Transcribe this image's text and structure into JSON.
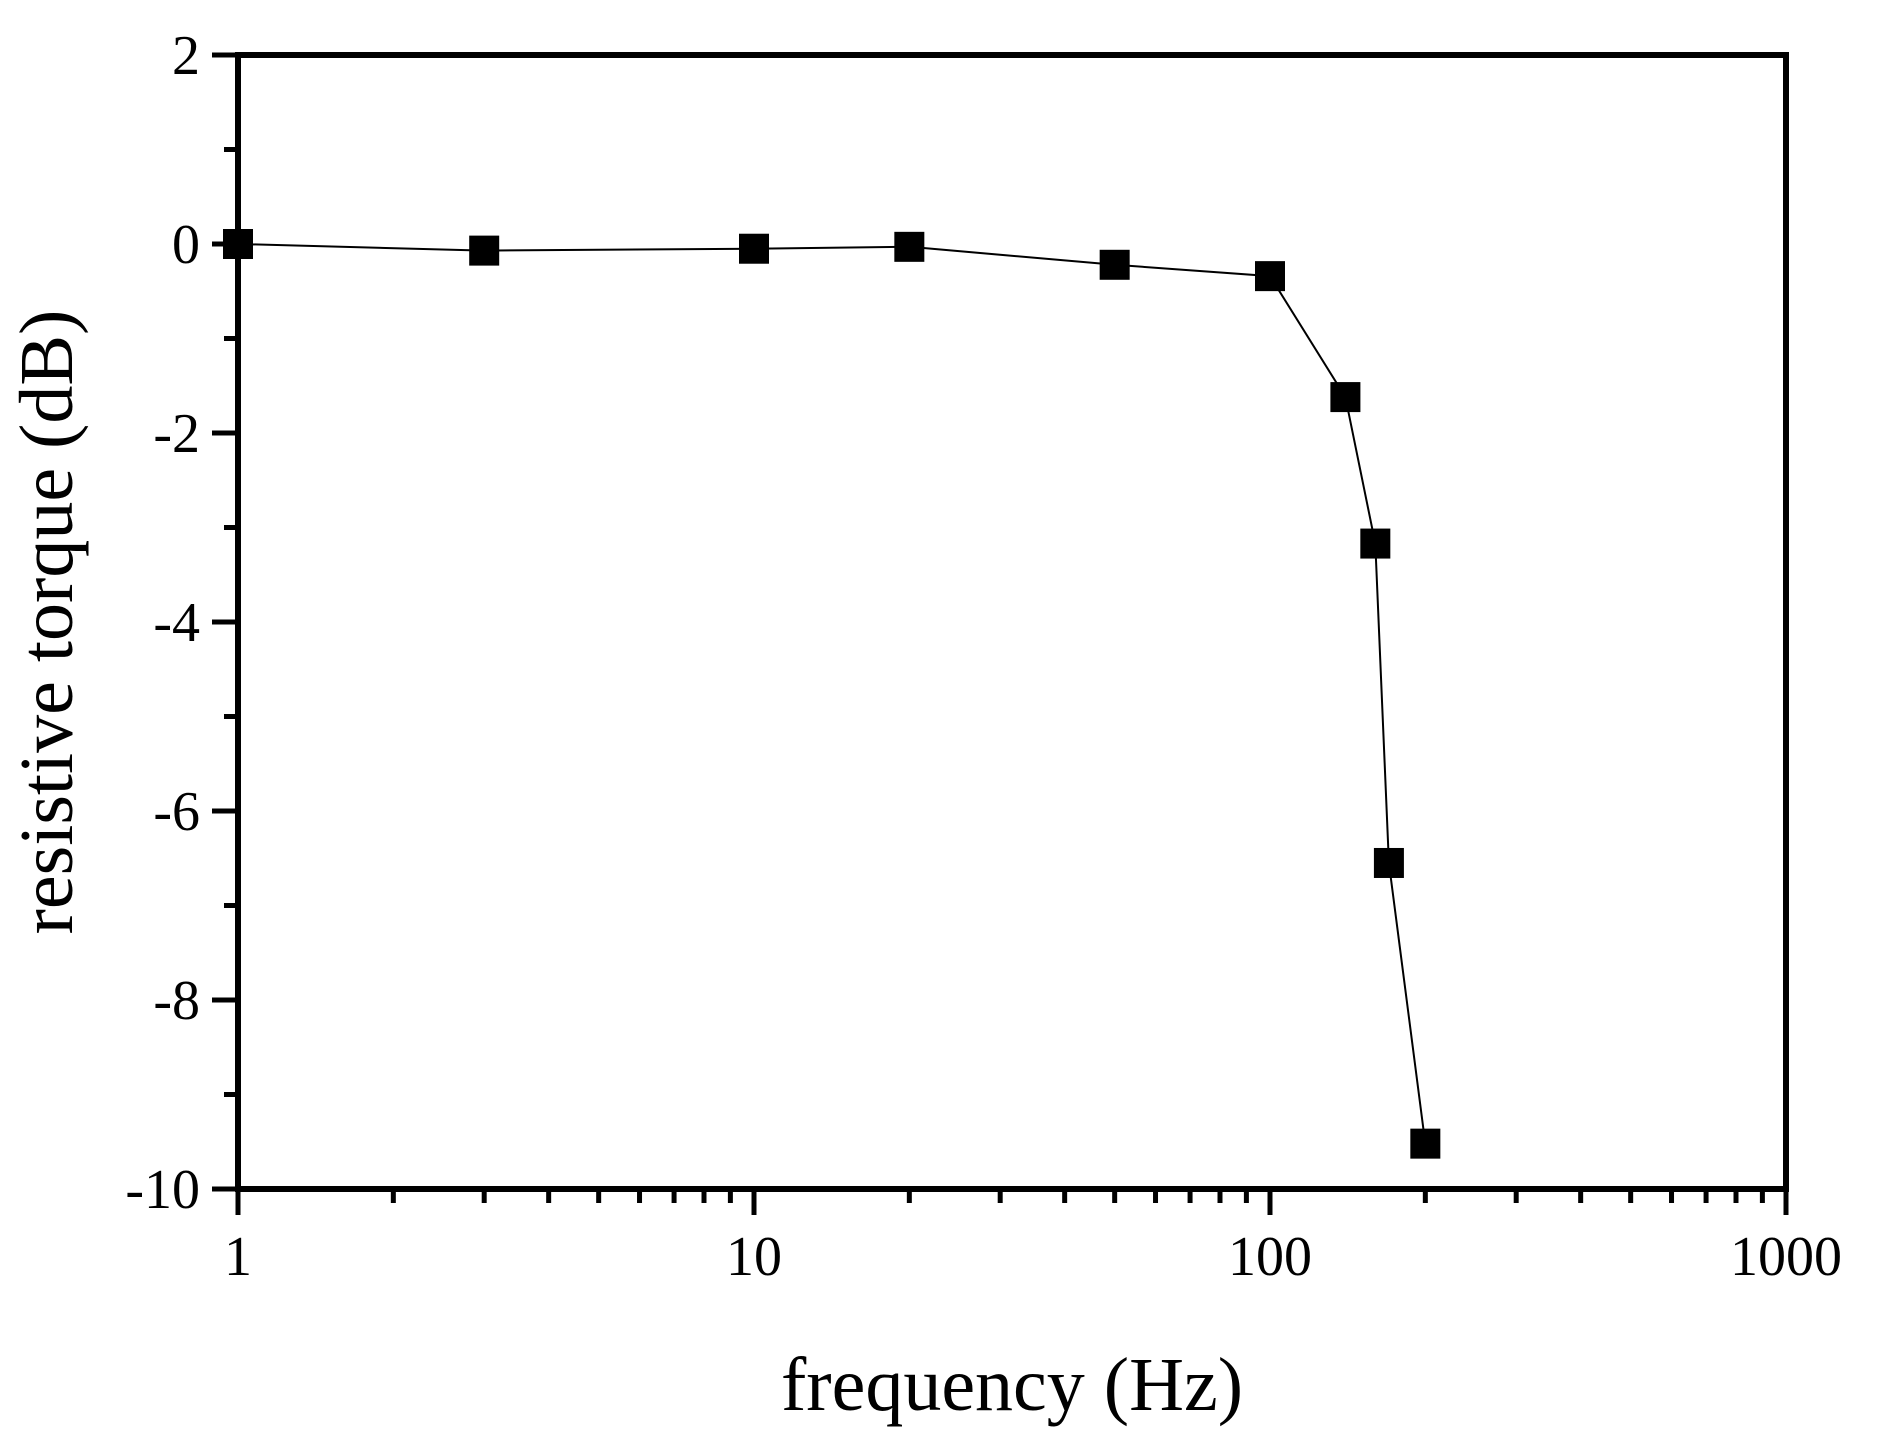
{
  "chart_data": {
    "type": "line",
    "xlabel": "frequency (Hz)",
    "ylabel": "resistive torque (dB)",
    "xscale": "log",
    "xlim": [
      1,
      1000
    ],
    "ylim": [
      -10,
      2
    ],
    "x_ticks": [
      1,
      10,
      100,
      1000
    ],
    "x_tick_labels": [
      "1",
      "10",
      "100",
      "1000"
    ],
    "y_ticks": [
      2,
      0,
      -2,
      -4,
      -6,
      -8,
      -10
    ],
    "y_tick_labels": [
      "2",
      "0",
      "-2",
      "-4",
      "-6",
      "-8",
      "-10"
    ],
    "y_minor_ticks": [
      1,
      -1,
      -3,
      -5,
      -7,
      -9
    ],
    "grid": false,
    "legend": "none",
    "marker": "square",
    "color": "#000000",
    "series": [
      {
        "x": [
          1,
          3,
          10,
          20,
          50,
          100,
          140,
          160,
          170,
          200
        ],
        "y": [
          0.0,
          -0.07,
          -0.05,
          -0.03,
          -0.22,
          -0.34,
          -1.62,
          -3.17,
          -6.55,
          -9.52
        ]
      }
    ]
  }
}
